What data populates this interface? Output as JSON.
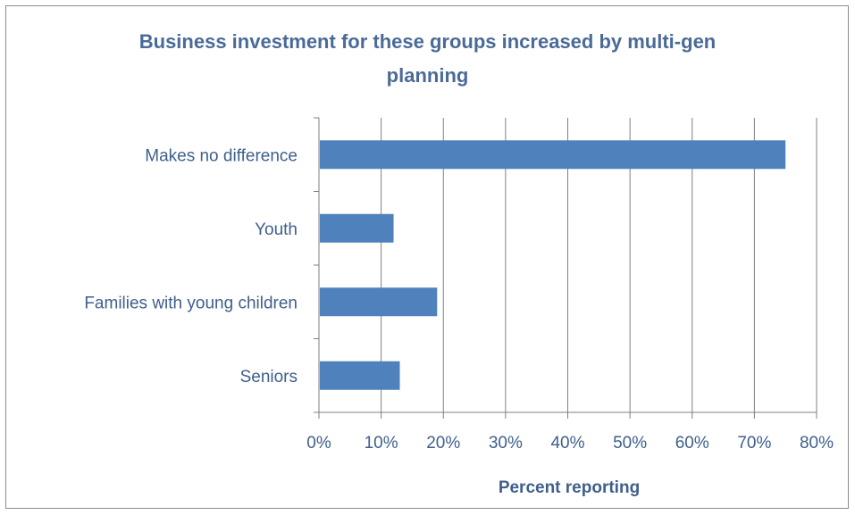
{
  "chart_data": {
    "type": "bar",
    "orientation": "horizontal",
    "title": "Business investment for these groups increased by multi-gen planning",
    "title_lines": [
      "Business investment for these groups increased by multi-gen",
      "planning"
    ],
    "xlabel": "Percent reporting",
    "ylabel": "",
    "categories": [
      "Makes no difference",
      "Youth",
      "Families with young children",
      "Seniors"
    ],
    "values": [
      75,
      12,
      19,
      13
    ],
    "xlim": [
      0,
      80
    ],
    "x_ticks": [
      0,
      10,
      20,
      30,
      40,
      50,
      60,
      70,
      80
    ],
    "x_tick_labels": [
      "0%",
      "10%",
      "20%",
      "30%",
      "40%",
      "50%",
      "60%",
      "70%",
      "80%"
    ],
    "grid": "vertical",
    "legend": "none",
    "colors": {
      "bar": "#4f81bd",
      "title": "#4a6a98",
      "text": "#3f5f8c",
      "grid": "#808080",
      "axis": "#7f7f7f"
    }
  }
}
